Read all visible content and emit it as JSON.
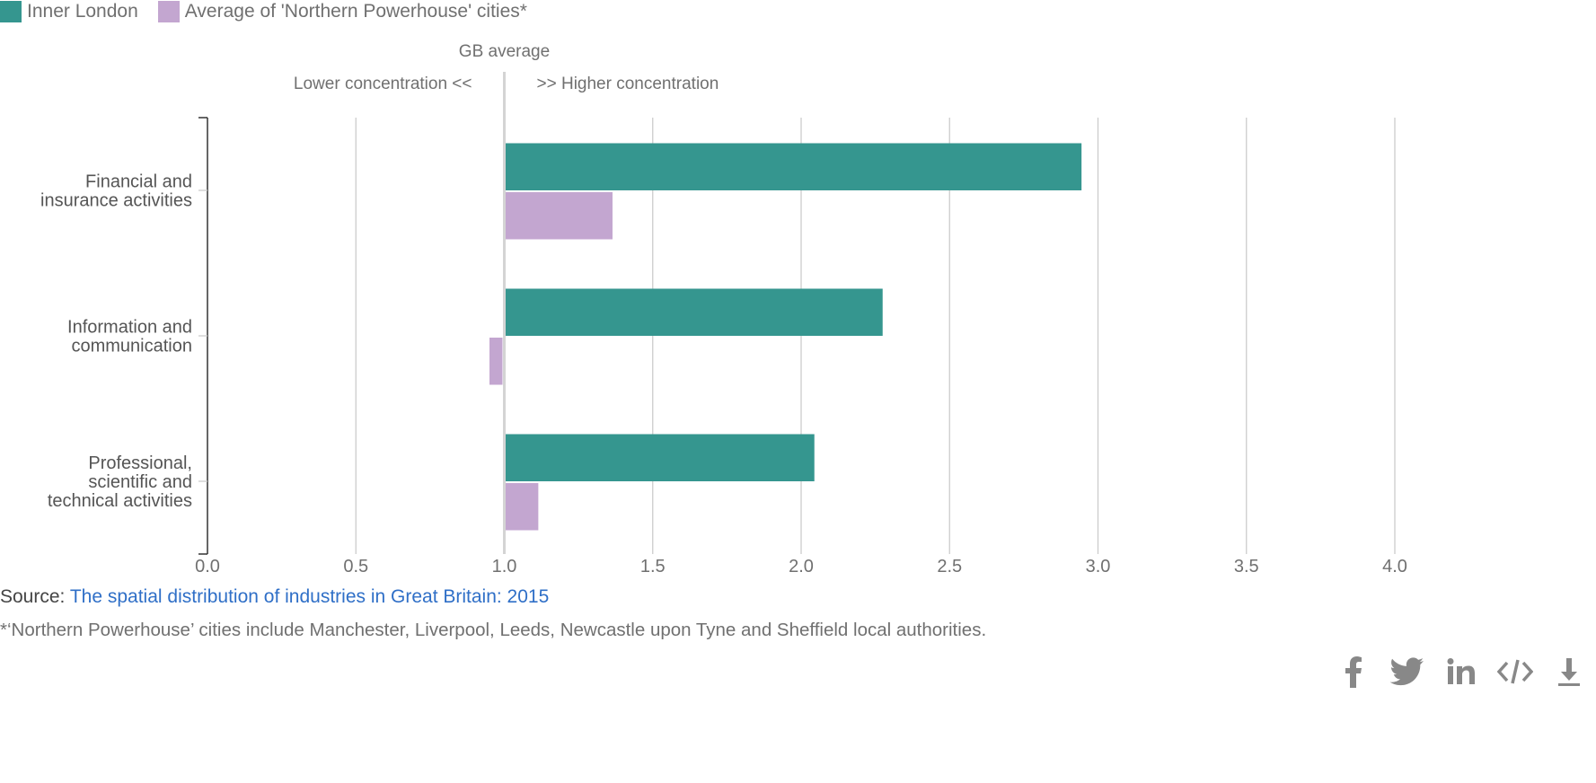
{
  "legend": [
    {
      "label": "Inner London",
      "color": "#35968f"
    },
    {
      "label": "Average of 'Northern Powerhouse' cities*",
      "color": "#c3a6d0"
    }
  ],
  "annotations": {
    "reference_label": "GB average",
    "left_label": "Lower concentration <<",
    "right_label": ">> Higher concentration"
  },
  "chart_data": {
    "type": "bar",
    "orientation": "horizontal",
    "categories": [
      [
        "Financial and",
        "insurance activities"
      ],
      [
        "Information and",
        "communication"
      ],
      [
        "Professional,",
        "scientific and",
        "technical activities"
      ]
    ],
    "series": [
      {
        "name": "Inner London",
        "values": [
          2.94,
          2.27,
          2.04
        ],
        "color": "#35968f"
      },
      {
        "name": "Average of 'Northern Powerhouse' cities*",
        "values": [
          1.36,
          0.95,
          1.11
        ],
        "color": "#c3a6d0"
      }
    ],
    "baseline": 1.0,
    "xlim": [
      0,
      4
    ],
    "xticks": [
      "0.0",
      "0.5",
      "1.0",
      "1.5",
      "2.0",
      "2.5",
      "3.0",
      "3.5",
      "4.0"
    ],
    "grid": true,
    "legend_position": "top-left"
  },
  "source": {
    "prefix": "Source: ",
    "link_text": "The spatial distribution of industries in Great Britain: 2015"
  },
  "footnote": "*‘Northern Powerhouse’ cities include Manchester, Liverpool, Leeds, Newcastle upon Tyne and Sheffield local authorities.",
  "share_icons": [
    "facebook-icon",
    "twitter-icon",
    "linkedin-icon",
    "embed-icon",
    "download-icon"
  ]
}
